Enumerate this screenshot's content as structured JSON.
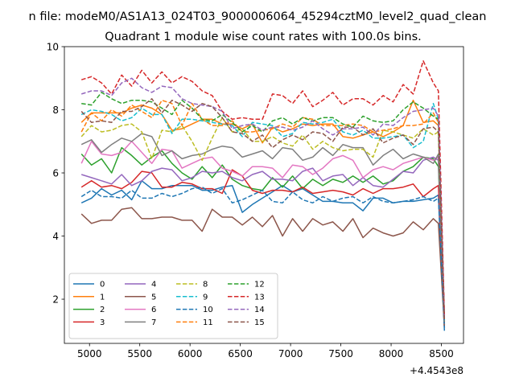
{
  "figure": {
    "suptitle": "n file: modeM0/AS1A13_024T03_9000006064_45294cztM0_level2_quad_clean",
    "title": "Quadrant 1 module wise count rates with 100.0s bins."
  },
  "chart_data": {
    "type": "line",
    "title": "Quadrant 1 module wise count rates with 100.0s bins.",
    "xlabel": "",
    "ylabel": "",
    "x_offset_label": "+4.4543e8",
    "xlim": [
      4750,
      8720
    ],
    "ylim": [
      0.6,
      10
    ],
    "xticks": [
      5000,
      5500,
      6000,
      6500,
      7000,
      7500,
      8000,
      8500
    ],
    "xtick_labels": [
      "5000",
      "5500",
      "6000",
      "6500",
      "7000",
      "7500",
      "8000",
      "8500"
    ],
    "yticks": [
      2,
      4,
      6,
      8,
      10
    ],
    "ytick_labels": [
      "2",
      "4",
      "6",
      "8",
      "10"
    ],
    "grid": false,
    "legend_position": "lower-left",
    "legend_columns": 4,
    "x": [
      4920,
      5020,
      5120,
      5220,
      5320,
      5420,
      5520,
      5620,
      5720,
      5820,
      5920,
      6020,
      6120,
      6220,
      6320,
      6420,
      6520,
      6620,
      6720,
      6820,
      6920,
      7020,
      7120,
      7220,
      7320,
      7420,
      7520,
      7620,
      7720,
      7820,
      7920,
      8020,
      8120,
      8220,
      8320,
      8420,
      8470,
      8530
    ],
    "series": [
      {
        "name": "0",
        "color": "#1f77b4",
        "style": "solid",
        "values": [
          5.05,
          5.2,
          5.5,
          5.3,
          5.45,
          5.15,
          5.75,
          5.5,
          5.5,
          5.6,
          5.6,
          5.6,
          5.45,
          5.45,
          5.55,
          5.6,
          4.75,
          5.0,
          5.2,
          5.4,
          5.6,
          5.4,
          5.5,
          5.3,
          5.1,
          5.1,
          5.05,
          5.05,
          4.8,
          5.2,
          5.2,
          5.05,
          5.1,
          5.1,
          5.15,
          5.2,
          5.3,
          1.0
        ]
      },
      {
        "name": "1",
        "color": "#ff7f0e",
        "style": "solid",
        "values": [
          7.6,
          7.9,
          7.9,
          7.9,
          7.9,
          8.05,
          8.15,
          8.05,
          7.85,
          7.35,
          7.4,
          7.55,
          7.7,
          7.7,
          7.55,
          7.55,
          7.4,
          7.55,
          6.95,
          7.45,
          7.3,
          7.4,
          7.55,
          7.5,
          7.55,
          7.55,
          7.15,
          7.1,
          7.2,
          7.3,
          7.15,
          7.3,
          7.5,
          8.3,
          7.6,
          7.65,
          7.5,
          1.1
        ]
      },
      {
        "name": "2",
        "color": "#2ca02c",
        "style": "solid",
        "values": [
          6.6,
          6.25,
          6.45,
          6.0,
          6.8,
          6.55,
          6.25,
          6.5,
          6.7,
          6.3,
          6.0,
          5.8,
          6.2,
          5.85,
          6.25,
          5.8,
          5.6,
          5.5,
          5.45,
          5.85,
          5.55,
          5.9,
          5.5,
          5.8,
          5.6,
          5.8,
          5.7,
          5.9,
          5.7,
          5.9,
          5.65,
          5.75,
          6.05,
          6.2,
          6.5,
          6.45,
          6.2,
          1.2
        ]
      },
      {
        "name": "3",
        "color": "#d62728",
        "style": "solid",
        "values": [
          5.55,
          5.75,
          5.55,
          5.6,
          5.5,
          5.7,
          6.05,
          6.0,
          5.55,
          5.55,
          5.7,
          5.65,
          5.5,
          5.5,
          5.35,
          6.1,
          5.9,
          5.45,
          5.35,
          5.45,
          5.45,
          5.4,
          5.55,
          5.35,
          5.4,
          5.45,
          5.4,
          5.3,
          5.5,
          5.35,
          5.5,
          5.5,
          5.55,
          5.65,
          5.25,
          5.5,
          5.6,
          1.1
        ]
      },
      {
        "name": "4",
        "color": "#9467bd",
        "style": "solid",
        "values": [
          5.95,
          5.85,
          5.75,
          5.65,
          5.95,
          5.6,
          5.75,
          6.05,
          6.15,
          6.1,
          5.75,
          5.85,
          6.05,
          6.0,
          6.05,
          5.85,
          5.75,
          5.95,
          6.05,
          5.8,
          5.8,
          5.75,
          6.05,
          6.15,
          5.75,
          5.9,
          5.95,
          5.6,
          5.85,
          5.6,
          5.55,
          5.8,
          6.05,
          6.0,
          6.4,
          6.5,
          6.4,
          1.2
        ]
      },
      {
        "name": "5",
        "color": "#8c564b",
        "style": "solid",
        "values": [
          4.7,
          4.4,
          4.5,
          4.5,
          4.85,
          4.9,
          4.55,
          4.55,
          4.6,
          4.6,
          4.5,
          4.5,
          4.15,
          4.85,
          4.6,
          4.6,
          4.35,
          4.6,
          4.3,
          4.65,
          4.0,
          4.55,
          4.15,
          4.55,
          4.35,
          4.45,
          4.15,
          4.55,
          3.95,
          4.25,
          4.1,
          4.0,
          4.1,
          4.45,
          4.2,
          4.55,
          4.4,
          1.1
        ]
      },
      {
        "name": "6",
        "color": "#e377c2",
        "style": "solid",
        "values": [
          6.3,
          7.0,
          6.6,
          6.55,
          6.65,
          7.0,
          6.65,
          6.3,
          6.75,
          6.7,
          6.15,
          6.3,
          6.45,
          6.5,
          6.15,
          6.05,
          5.9,
          6.2,
          6.2,
          6.15,
          5.85,
          6.25,
          6.2,
          5.95,
          6.15,
          6.45,
          6.55,
          6.4,
          5.85,
          6.1,
          6.2,
          6.1,
          6.3,
          6.4,
          6.5,
          6.4,
          6.5,
          1.3
        ]
      },
      {
        "name": "7",
        "color": "#7f7f7f",
        "style": "solid",
        "values": [
          6.9,
          7.05,
          6.65,
          6.9,
          7.1,
          7.0,
          7.25,
          7.15,
          6.55,
          6.7,
          6.45,
          6.55,
          6.6,
          6.75,
          6.85,
          6.8,
          6.5,
          6.6,
          6.7,
          6.45,
          6.8,
          6.75,
          6.4,
          6.5,
          6.8,
          6.55,
          6.9,
          6.8,
          6.8,
          6.25,
          6.55,
          6.75,
          6.45,
          6.6,
          6.5,
          6.3,
          6.6,
          1.2
        ]
      },
      {
        "name": "8",
        "color": "#bcbd22",
        "style": "dashed",
        "values": [
          7.15,
          7.5,
          7.3,
          7.35,
          7.5,
          7.55,
          7.3,
          6.45,
          7.35,
          7.3,
          7.5,
          7.0,
          6.4,
          7.1,
          7.75,
          7.3,
          7.4,
          7.0,
          7.0,
          7.15,
          6.95,
          6.85,
          7.2,
          6.75,
          7.0,
          6.8,
          6.7,
          6.75,
          6.75,
          6.5,
          7.35,
          7.3,
          7.2,
          7.1,
          7.4,
          7.2,
          7.3,
          1.4
        ]
      },
      {
        "name": "9",
        "color": "#17becf",
        "style": "dashed",
        "values": [
          7.85,
          8.0,
          7.95,
          7.85,
          7.65,
          7.75,
          8.05,
          7.85,
          7.85,
          7.25,
          7.7,
          7.7,
          7.65,
          7.6,
          7.55,
          7.5,
          7.15,
          7.6,
          7.55,
          7.5,
          7.15,
          7.25,
          7.6,
          7.55,
          7.6,
          7.7,
          7.3,
          7.2,
          7.35,
          7.1,
          7.1,
          7.15,
          7.2,
          6.8,
          7.0,
          8.2,
          7.7,
          1.3
        ]
      },
      {
        "name": "10",
        "color": "#1f77b4",
        "style": "dashed",
        "values": [
          5.25,
          5.45,
          5.25,
          5.25,
          5.2,
          5.45,
          5.2,
          5.2,
          5.35,
          5.25,
          5.35,
          5.5,
          5.55,
          5.35,
          5.5,
          5.05,
          5.15,
          5.3,
          5.45,
          5.1,
          5.05,
          5.4,
          5.15,
          5.05,
          5.25,
          5.1,
          5.2,
          5.25,
          5.05,
          5.25,
          5.1,
          5.05,
          5.1,
          5.15,
          5.25,
          5.1,
          5.2,
          1.1
        ]
      },
      {
        "name": "11",
        "color": "#ff7f0e",
        "style": "dashed",
        "values": [
          7.3,
          7.9,
          7.65,
          8.0,
          7.8,
          8.15,
          7.95,
          7.75,
          8.3,
          8.2,
          7.5,
          8.2,
          7.7,
          7.5,
          7.5,
          7.65,
          7.3,
          7.3,
          7.35,
          7.4,
          7.55,
          7.45,
          7.75,
          7.7,
          7.5,
          7.5,
          7.5,
          7.55,
          7.5,
          7.3,
          7.35,
          7.4,
          7.5,
          7.5,
          7.55,
          7.9,
          7.6,
          1.3
        ]
      },
      {
        "name": "12",
        "color": "#2ca02c",
        "style": "dashed",
        "values": [
          8.2,
          8.15,
          8.55,
          8.35,
          8.2,
          8.3,
          8.3,
          8.25,
          8.05,
          7.85,
          8.3,
          8.05,
          7.7,
          7.65,
          7.85,
          7.6,
          7.3,
          7.5,
          7.3,
          7.65,
          7.75,
          7.55,
          7.75,
          7.65,
          7.75,
          7.75,
          7.55,
          7.45,
          7.8,
          7.65,
          7.6,
          7.65,
          8.0,
          8.25,
          8.05,
          7.8,
          7.7,
          1.4
        ]
      },
      {
        "name": "13",
        "color": "#d62728",
        "style": "dashed",
        "values": [
          8.95,
          9.05,
          8.85,
          8.5,
          9.1,
          8.75,
          9.25,
          8.85,
          9.2,
          8.85,
          9.05,
          8.9,
          8.6,
          8.45,
          7.95,
          7.7,
          7.75,
          7.7,
          7.7,
          8.5,
          8.45,
          8.2,
          8.6,
          8.1,
          8.3,
          8.55,
          8.15,
          8.35,
          8.35,
          8.15,
          8.45,
          8.25,
          8.8,
          8.5,
          9.55,
          8.85,
          8.6,
          1.5
        ]
      },
      {
        "name": "14",
        "color": "#9467bd",
        "style": "dashed",
        "values": [
          8.5,
          8.6,
          8.6,
          8.45,
          8.85,
          9.0,
          8.7,
          8.55,
          8.75,
          8.7,
          8.35,
          8.2,
          8.15,
          8.1,
          7.95,
          7.4,
          7.5,
          7.55,
          7.35,
          7.45,
          7.45,
          7.35,
          7.45,
          7.65,
          7.4,
          7.2,
          7.4,
          7.4,
          7.45,
          7.2,
          7.55,
          7.5,
          7.75,
          7.95,
          8.0,
          8.05,
          7.8,
          1.4
        ]
      },
      {
        "name": "15",
        "color": "#8c564b",
        "style": "dashed",
        "values": [
          7.95,
          7.6,
          7.65,
          7.6,
          7.95,
          7.95,
          8.1,
          8.35,
          7.9,
          8.3,
          8.15,
          7.95,
          8.2,
          8.1,
          7.75,
          7.3,
          7.25,
          7.0,
          7.2,
          6.8,
          7.05,
          7.2,
          7.05,
          7.3,
          7.25,
          7.0,
          7.45,
          7.45,
          7.2,
          7.4,
          6.95,
          7.1,
          7.2,
          6.9,
          7.4,
          7.45,
          7.3,
          1.3
        ]
      }
    ]
  }
}
